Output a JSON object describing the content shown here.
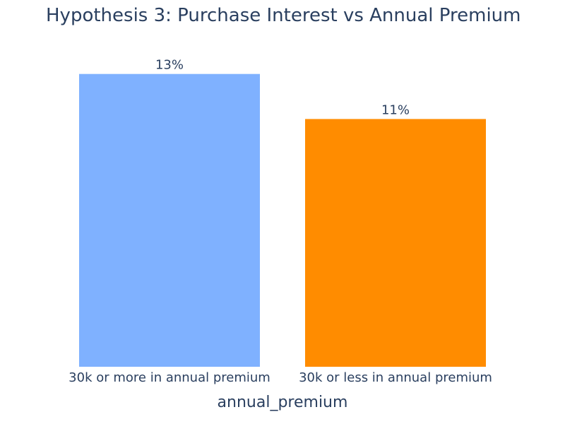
{
  "chart_data": {
    "type": "bar",
    "title": "Hypothesis 3: Purchase Interest vs Annual Premium",
    "xlabel": "annual_premium",
    "ylabel": "",
    "categories": [
      "30k or more in annual premium",
      "30k or less in annual premium"
    ],
    "values": [
      13,
      11
    ],
    "value_labels": [
      "13%",
      "11%"
    ],
    "colors": [
      "#7fb1ff",
      "#ff8c00"
    ],
    "ylim": [
      0,
      13.68
    ],
    "grid": false,
    "legend": "none"
  }
}
